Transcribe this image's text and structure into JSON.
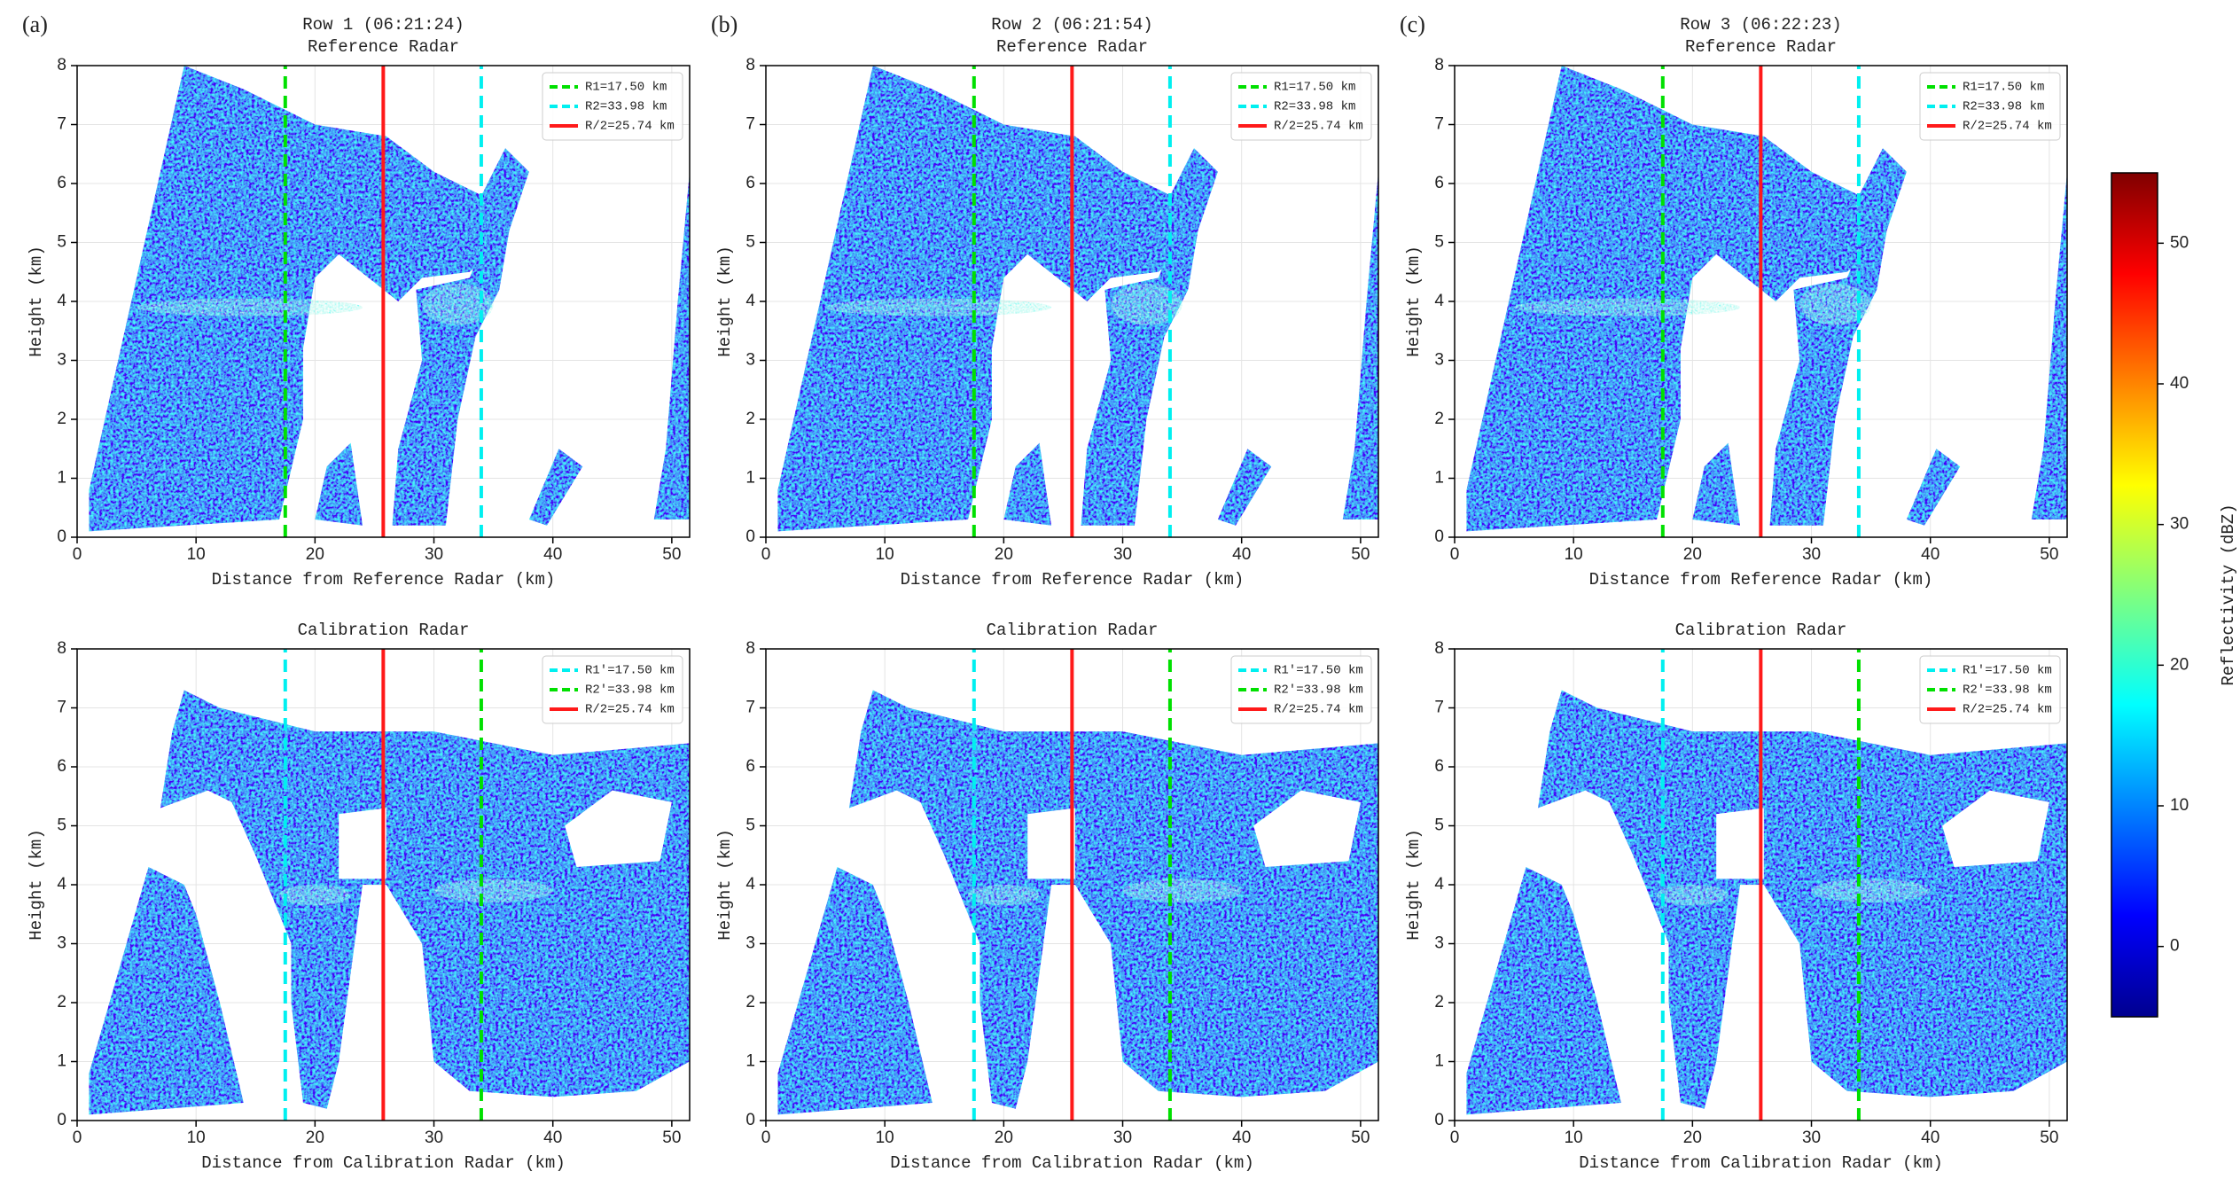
{
  "chart_data": [
    {
      "type": "heatmap",
      "panel_label": "(a)",
      "title": "Row 1 (06:21:24)",
      "subtitle": "Reference Radar",
      "xlabel": "Distance from Reference Radar (km)",
      "ylabel": "Height (km)",
      "xlim": [
        0,
        51.5
      ],
      "ylim": [
        0,
        8
      ],
      "xticks": [
        0,
        10,
        20,
        30,
        40,
        50
      ],
      "yticks": [
        0,
        1,
        2,
        3,
        4,
        5,
        6,
        7,
        8
      ],
      "grid": true,
      "legend": "upper right",
      "lines": [
        {
          "name": "R1=17.50 km",
          "x": 17.5,
          "color": "#00e000",
          "style": "dashed"
        },
        {
          "name": "R2=33.98 km",
          "x": 33.98,
          "color": "#00f0f0",
          "style": "dashed"
        },
        {
          "name": "R/2=25.74 km",
          "x": 25.74,
          "color": "#ff1a1a",
          "style": "solid"
        }
      ]
    },
    {
      "type": "heatmap",
      "panel_label": "(b)",
      "title": "Row 2 (06:21:54)",
      "subtitle": "Reference Radar",
      "xlabel": "Distance from Reference Radar (km)",
      "ylabel": "Height (km)",
      "xlim": [
        0,
        51.5
      ],
      "ylim": [
        0,
        8
      ],
      "xticks": [
        0,
        10,
        20,
        30,
        40,
        50
      ],
      "yticks": [
        0,
        1,
        2,
        3,
        4,
        5,
        6,
        7,
        8
      ],
      "grid": true,
      "legend": "upper right",
      "lines": [
        {
          "name": "R1=17.50 km",
          "x": 17.5,
          "color": "#00e000",
          "style": "dashed"
        },
        {
          "name": "R2=33.98 km",
          "x": 33.98,
          "color": "#00f0f0",
          "style": "dashed"
        },
        {
          "name": "R/2=25.74 km",
          "x": 25.74,
          "color": "#ff1a1a",
          "style": "solid"
        }
      ]
    },
    {
      "type": "heatmap",
      "panel_label": "(c)",
      "title": "Row 3 (06:22:23)",
      "subtitle": "Reference Radar",
      "xlabel": "Distance from Reference Radar (km)",
      "ylabel": "Height (km)",
      "xlim": [
        0,
        51.5
      ],
      "ylim": [
        0,
        8
      ],
      "xticks": [
        0,
        10,
        20,
        30,
        40,
        50
      ],
      "yticks": [
        0,
        1,
        2,
        3,
        4,
        5,
        6,
        7,
        8
      ],
      "grid": true,
      "legend": "upper right",
      "lines": [
        {
          "name": "R1=17.50 km",
          "x": 17.5,
          "color": "#00e000",
          "style": "dashed"
        },
        {
          "name": "R2=33.98 km",
          "x": 33.98,
          "color": "#00f0f0",
          "style": "dashed"
        },
        {
          "name": "R/2=25.74 km",
          "x": 25.74,
          "color": "#ff1a1a",
          "style": "solid"
        }
      ]
    },
    {
      "type": "heatmap",
      "title": "Calibration Radar",
      "xlabel": "Distance from Calibration Radar (km)",
      "ylabel": "Height (km)",
      "xlim": [
        0,
        51.5
      ],
      "ylim": [
        0,
        8
      ],
      "xticks": [
        0,
        10,
        20,
        30,
        40,
        50
      ],
      "yticks": [
        0,
        1,
        2,
        3,
        4,
        5,
        6,
        7,
        8
      ],
      "grid": true,
      "legend": "upper right",
      "lines": [
        {
          "name": "R1'=17.50 km",
          "x": 17.5,
          "color": "#00f0f0",
          "style": "dashed"
        },
        {
          "name": "R2'=33.98 km",
          "x": 33.98,
          "color": "#00e000",
          "style": "dashed"
        },
        {
          "name": "R/2=25.74 km",
          "x": 25.74,
          "color": "#ff1a1a",
          "style": "solid"
        }
      ]
    },
    {
      "type": "heatmap",
      "title": "Calibration Radar",
      "xlabel": "Distance from Calibration Radar (km)",
      "ylabel": "Height (km)",
      "xlim": [
        0,
        51.5
      ],
      "ylim": [
        0,
        8
      ],
      "xticks": [
        0,
        10,
        20,
        30,
        40,
        50
      ],
      "yticks": [
        0,
        1,
        2,
        3,
        4,
        5,
        6,
        7,
        8
      ],
      "grid": true,
      "legend": "upper right",
      "lines": [
        {
          "name": "R1'=17.50 km",
          "x": 17.5,
          "color": "#00f0f0",
          "style": "dashed"
        },
        {
          "name": "R2'=33.98 km",
          "x": 33.98,
          "color": "#00e000",
          "style": "dashed"
        },
        {
          "name": "R/2=25.74 km",
          "x": 25.74,
          "color": "#ff1a1a",
          "style": "solid"
        }
      ]
    },
    {
      "type": "heatmap",
      "title": "Calibration Radar",
      "xlabel": "Distance from Calibration Radar (km)",
      "ylabel": "Height (km)",
      "xlim": [
        0,
        51.5
      ],
      "ylim": [
        0,
        8
      ],
      "xticks": [
        0,
        10,
        20,
        30,
        40,
        50
      ],
      "yticks": [
        0,
        1,
        2,
        3,
        4,
        5,
        6,
        7,
        8
      ],
      "grid": true,
      "legend": "upper right",
      "lines": [
        {
          "name": "R1'=17.50 km",
          "x": 17.5,
          "color": "#00f0f0",
          "style": "dashed"
        },
        {
          "name": "R2'=33.98 km",
          "x": 33.98,
          "color": "#00e000",
          "style": "dashed"
        },
        {
          "name": "R/2=25.74 km",
          "x": 25.74,
          "color": "#ff1a1a",
          "style": "solid"
        }
      ]
    },
    {
      "type": "colorbar",
      "label": "Reflectivity (dBZ)",
      "clim": [
        -5,
        55
      ],
      "ticks": [
        0,
        10,
        20,
        30,
        40,
        50
      ],
      "colormap": "jet"
    }
  ]
}
